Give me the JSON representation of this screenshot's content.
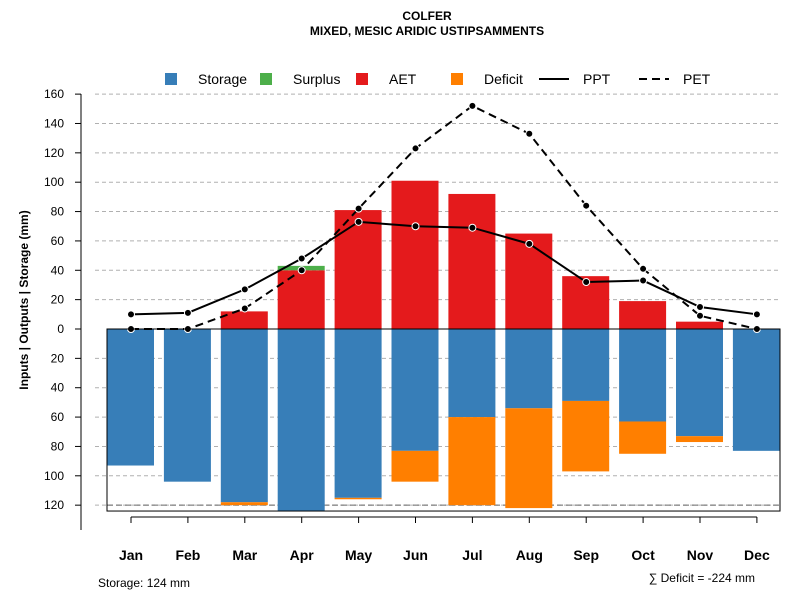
{
  "chart_data": {
    "type": "bar",
    "title": "COLFER",
    "subtitle": "MIXED, MESIC ARIDIC USTIPSAMMENTS",
    "ylabel": "Inputs | Outputs | Storage    (mm)",
    "ylim": [
      -124,
      160
    ],
    "yticks": [
      160,
      140,
      120,
      100,
      80,
      60,
      40,
      20,
      0,
      -20,
      -40,
      -60,
      -80,
      -100,
      -120
    ],
    "grid": "horizontal dashed",
    "legend_position": "top",
    "categories": [
      "Jan",
      "Feb",
      "Mar",
      "Apr",
      "May",
      "Jun",
      "Jul",
      "Aug",
      "Sep",
      "Oct",
      "Nov",
      "Dec"
    ],
    "legend": [
      {
        "name": "Storage",
        "kind": "box",
        "color": "#377eb8"
      },
      {
        "name": "Surplus",
        "kind": "box",
        "color": "#4daf4a"
      },
      {
        "name": "AET",
        "kind": "box",
        "color": "#e41a1c"
      },
      {
        "name": "Deficit",
        "kind": "box",
        "color": "#ff7f00"
      },
      {
        "name": "PPT",
        "kind": "solid"
      },
      {
        "name": "PET",
        "kind": "dashed"
      }
    ],
    "series": [
      {
        "name": "Storage",
        "values": [
          93,
          104,
          118,
          124,
          115,
          83,
          60,
          54,
          49,
          63,
          73,
          83
        ]
      },
      {
        "name": "Deficit",
        "values": [
          0,
          0,
          2,
          0,
          1,
          21,
          60,
          68,
          48,
          22,
          4,
          0
        ]
      },
      {
        "name": "AET",
        "values": [
          0,
          0,
          12,
          40,
          81,
          101,
          92,
          65,
          36,
          19,
          5,
          0
        ]
      },
      {
        "name": "Surplus",
        "values": [
          0,
          0,
          0,
          3,
          0,
          0,
          0,
          0,
          0,
          0,
          0,
          0
        ]
      },
      {
        "name": "PPT",
        "values": [
          10,
          11,
          27,
          48,
          73,
          70,
          69,
          58,
          32,
          33,
          15,
          10
        ]
      },
      {
        "name": "PET",
        "values": [
          0,
          0,
          14,
          40,
          82,
          123,
          152,
          133,
          84,
          41,
          9,
          0
        ]
      }
    ]
  },
  "footer": {
    "storage_note": "Storage: 124 mm",
    "deficit_note": "∑ Deficit = -224 mm"
  }
}
